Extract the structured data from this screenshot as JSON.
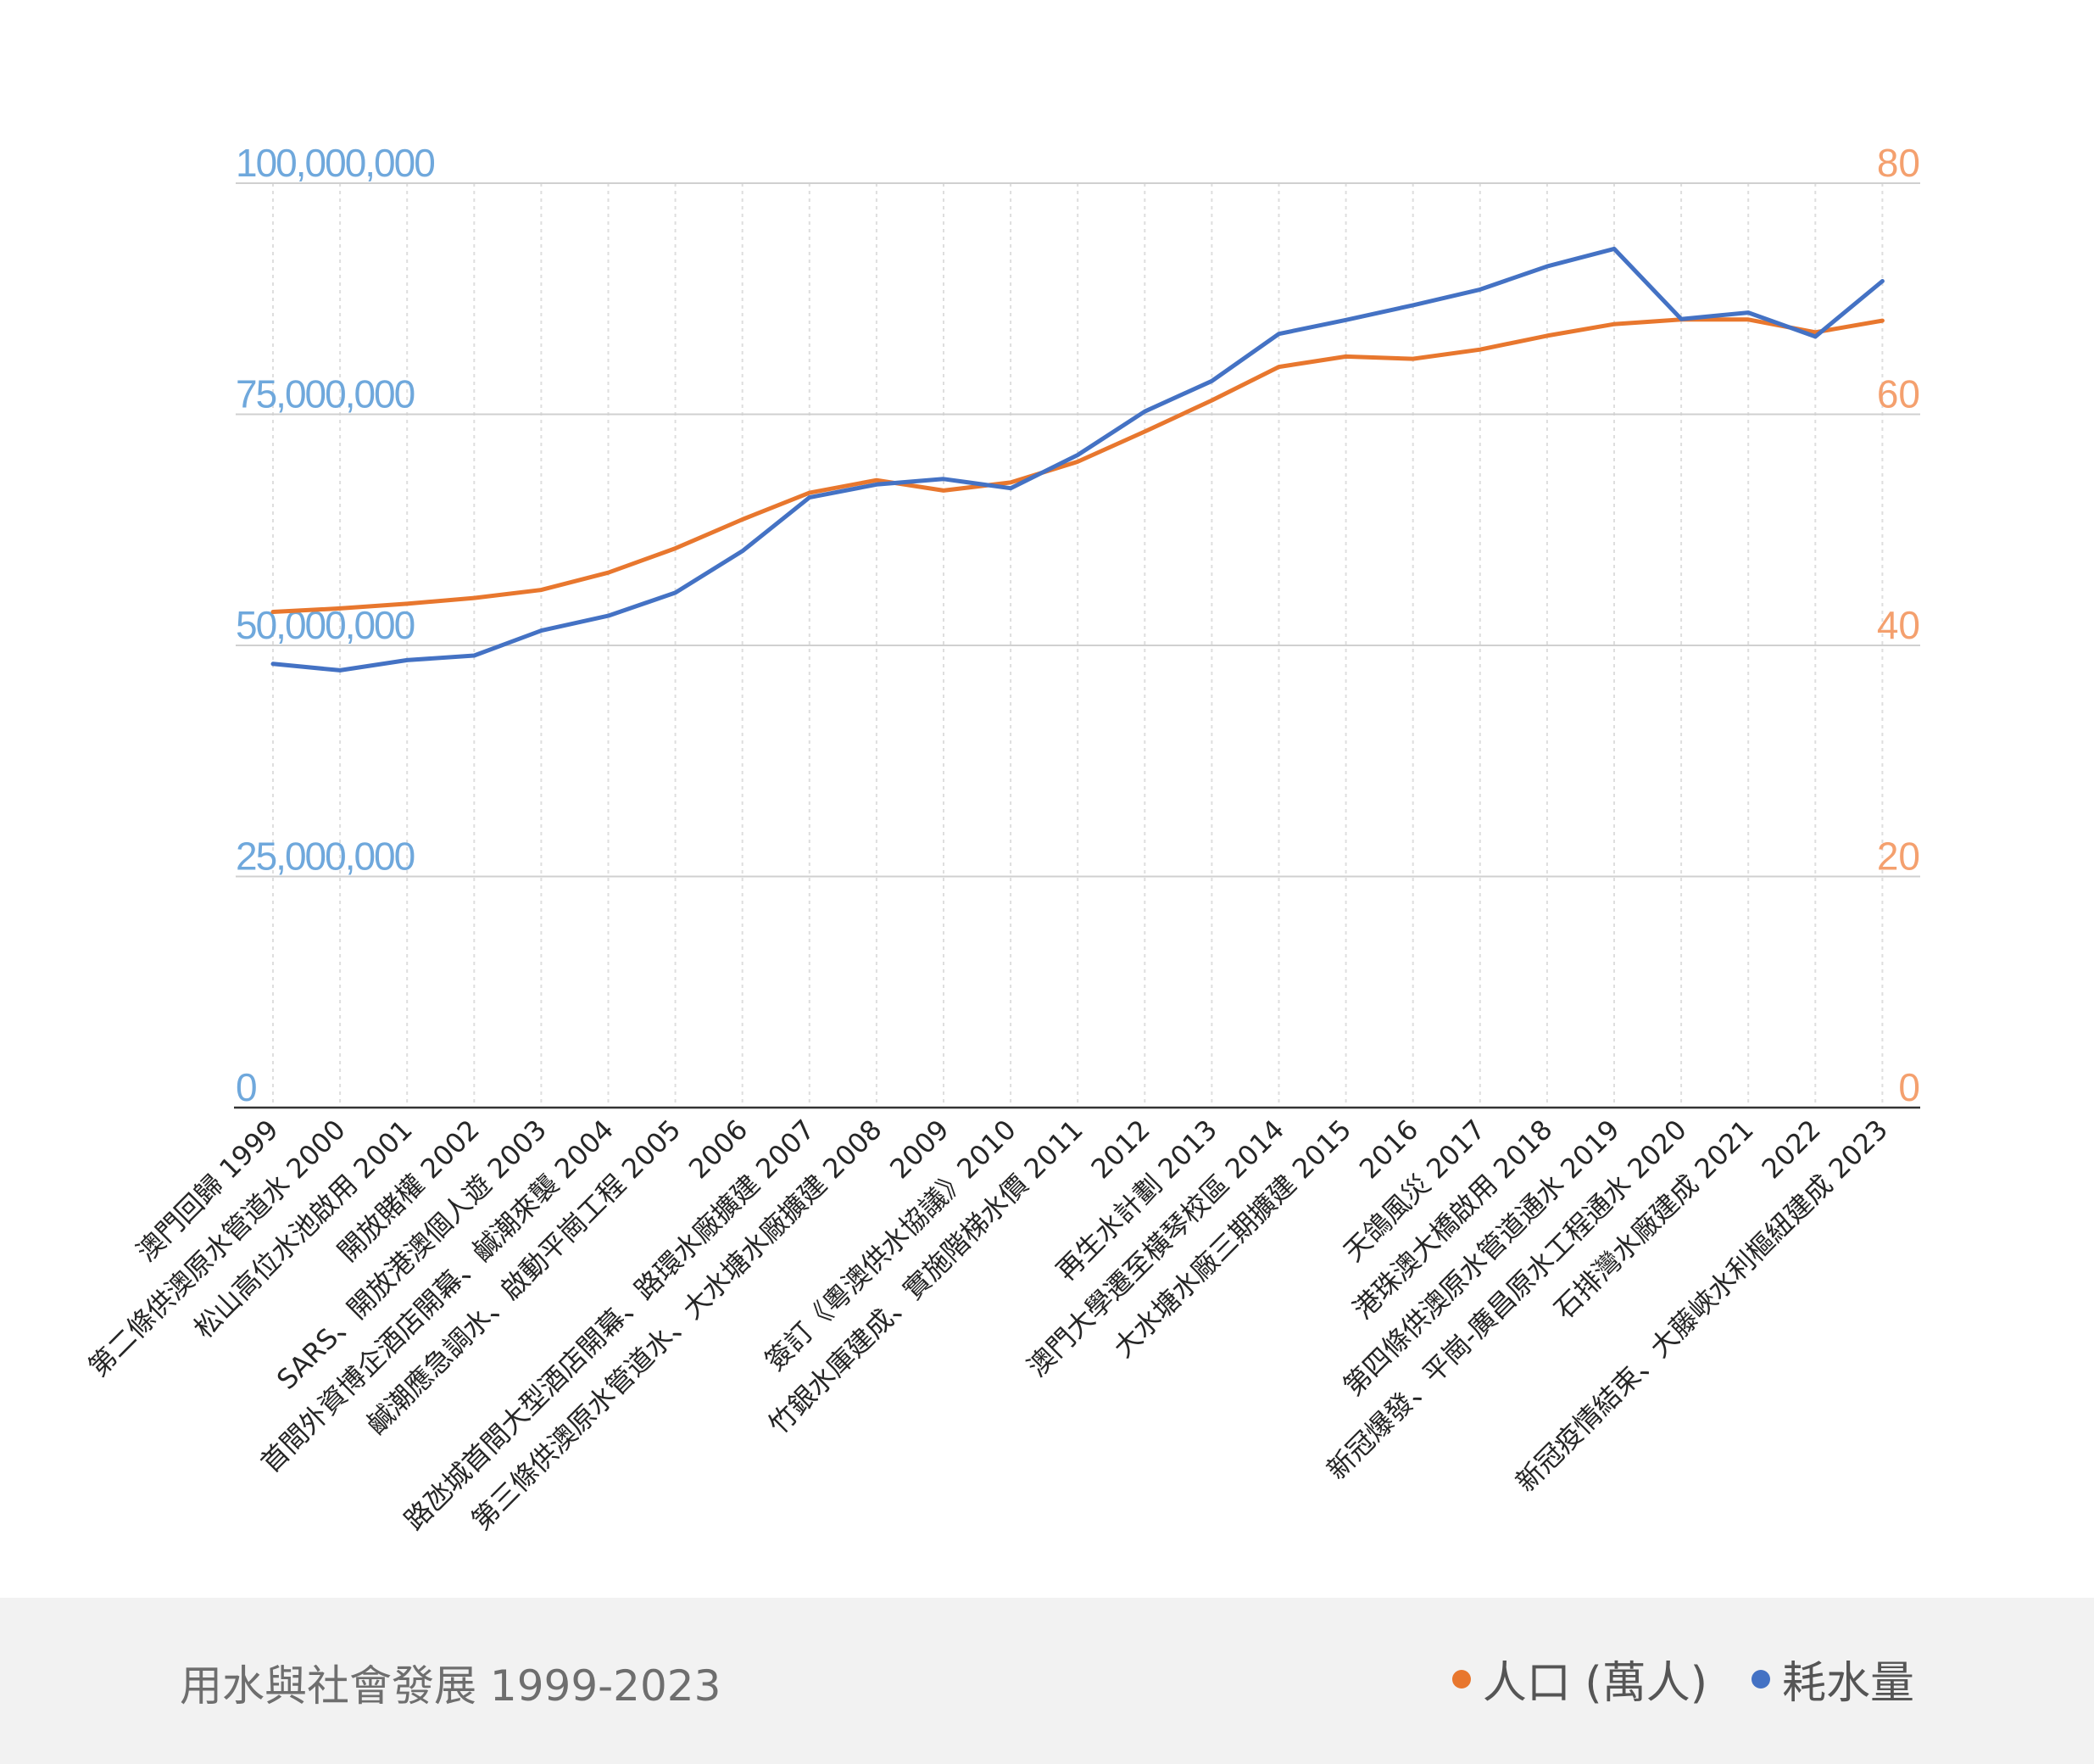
{
  "chart_data": {
    "type": "line",
    "title": "用水與社會發展  1999-2023",
    "categories": [
      "澳門回歸  1999",
      "第二條供澳原水管道水  2000",
      "松山高位水池啟用  2001",
      "開放賭權  2002",
      "SARS、開放港澳個人遊  2003",
      "首間外資博企酒店開幕、鹹潮來襲  2004",
      "鹹潮應急調水、啟動平崗工程  2005",
      "2006",
      "路氹城首間大型酒店開幕、路環水廠擴建  2007",
      "第三條供澳原水管道水、大水塘水廠擴建  2008",
      "2009",
      "簽訂《粵澳供水協議》2010",
      "竹銀水庫建成、實施階梯水價  2011",
      "2012",
      "再生水計劃  2013",
      "澳門大學遷至橫琴校區  2014",
      "大水塘水廠三期擴建  2015",
      "2016",
      "天鴿風災  2017",
      "港珠澳大橋啟用  2018",
      "第四條供澳原水管道通水  2019",
      "新冠爆發、平崗-廣昌原水工程通水  2020",
      "石排灣水廠建成  2021",
      "2022",
      "新冠疫情結束、大藤峽水利樞紐建成  2023"
    ],
    "series": [
      {
        "name": "人口 (萬人)",
        "axis": "right",
        "color": "#e8772e",
        "values": [
          42.9,
          43.2,
          43.6,
          44.1,
          44.8,
          46.3,
          48.4,
          50.9,
          53.2,
          54.3,
          53.4,
          54.1,
          55.9,
          58.5,
          61.2,
          64.1,
          65.0,
          64.8,
          65.6,
          66.8,
          67.8,
          68.2,
          68.2,
          67.1,
          68.1
        ],
        "labels_visible": false
      },
      {
        "name": "耗水量",
        "axis": "left",
        "color": "#4472c4",
        "values": [
          48000000,
          47300000,
          48400000,
          48900000,
          51600000,
          53200000,
          55700000,
          60200000,
          66000000,
          67400000,
          68000000,
          67000000,
          70600000,
          75300000,
          78600000,
          83700000,
          85200000,
          86800000,
          88500000,
          91000000,
          92900000,
          85300000,
          86000000,
          83400000,
          89400000
        ]
      }
    ],
    "y_left": {
      "ylim": [
        0,
        100000000
      ],
      "ticks": [
        "0",
        "25,000,000",
        "50,000,000",
        "75,000,000",
        "100,000,000"
      ]
    },
    "y_right": {
      "ylim": [
        0,
        80
      ],
      "ticks": [
        "0",
        "20",
        "40",
        "60",
        "80"
      ]
    },
    "grid": true,
    "legend_position": "bottom-right"
  },
  "colors": {
    "left_axis": "#6fa8dc",
    "right_axis": "#f4a06e",
    "grid": "#d0d0d0",
    "footer_bg": "#f2f2f2"
  },
  "footer": {
    "title": "用水與社會發展  1999-2023",
    "legend": [
      {
        "label": "人口 (萬人)",
        "color": "#e8772e"
      },
      {
        "label": "耗水量",
        "color": "#4472c4"
      }
    ]
  }
}
